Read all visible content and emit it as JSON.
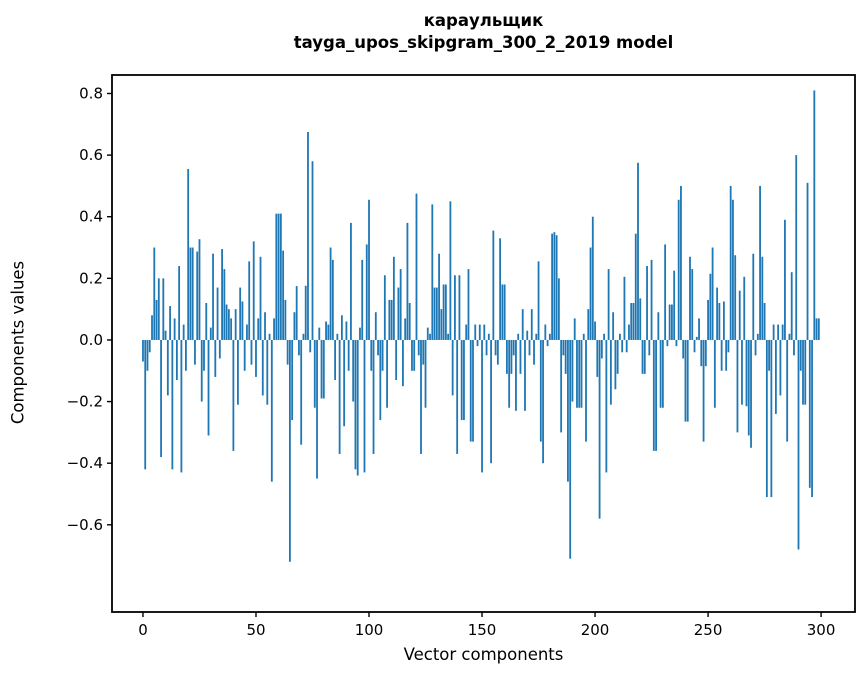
{
  "figure": {
    "title_line1": "караульщик",
    "title_line2": "tayga_upos_skipgram_300_2_2019 model",
    "background_color": "#ffffff"
  },
  "chart_data": {
    "type": "bar",
    "title": "караульщик",
    "subtitle": "tayga_upos_skipgram_300_2_2019 model",
    "xlabel": "Vector components",
    "ylabel": "Components values",
    "bar_color": "#1f77b4",
    "axis_color": "#000000",
    "grid": false,
    "legend": "none",
    "xlim": [
      -13.7,
      315
    ],
    "ylim": [
      -0.883,
      0.86
    ],
    "xticks": [
      0,
      50,
      100,
      150,
      200,
      250,
      300
    ],
    "yticks": [
      0.8,
      0.6,
      0.4,
      0.2,
      0.0,
      -0.2,
      -0.4,
      -0.6
    ],
    "ytick_labels": [
      "0.8",
      "0.6",
      "0.4",
      "0.2",
      "0.0",
      "−0.2",
      "−0.4",
      "−0.6"
    ],
    "x_start": 0,
    "bar_width": 0.8,
    "values": [
      -0.07,
      -0.42,
      -0.1,
      -0.04,
      0.08,
      0.3,
      0.13,
      0.2,
      -0.38,
      0.2,
      0.03,
      -0.18,
      0.11,
      -0.42,
      0.07,
      -0.13,
      0.24,
      -0.43,
      0.05,
      -0.1,
      0.555,
      0.3,
      0.3,
      -0.08,
      0.287,
      0.327,
      -0.2,
      -0.1,
      0.12,
      -0.31,
      0.04,
      0.28,
      -0.12,
      0.17,
      -0.06,
      0.295,
      0.23,
      0.115,
      0.1,
      0.07,
      -0.36,
      0.1,
      -0.21,
      0.17,
      0.125,
      -0.1,
      0.05,
      0.255,
      -0.08,
      0.32,
      -0.12,
      0.07,
      0.27,
      -0.18,
      0.09,
      -0.21,
      0.02,
      -0.46,
      0.07,
      0.41,
      0.41,
      0.41,
      0.29,
      0.13,
      -0.08,
      -0.72,
      -0.26,
      0.09,
      0.175,
      -0.05,
      -0.34,
      0.02,
      0.176,
      0.675,
      -0.04,
      0.58,
      -0.22,
      -0.45,
      0.04,
      -0.19,
      -0.19,
      0.06,
      0.05,
      0.3,
      0.26,
      -0.13,
      0.02,
      -0.37,
      0.08,
      -0.28,
      0.06,
      -0.1,
      0.38,
      -0.2,
      -0.42,
      -0.44,
      0.04,
      0.26,
      -0.43,
      0.31,
      0.455,
      -0.1,
      -0.37,
      0.09,
      -0.05,
      -0.26,
      -0.1,
      0.21,
      -0.22,
      0.13,
      0.13,
      0.27,
      -0.13,
      0.17,
      0.23,
      -0.15,
      0.07,
      0.38,
      0.12,
      -0.1,
      -0.1,
      0.475,
      -0.05,
      -0.37,
      -0.08,
      -0.22,
      0.04,
      0.02,
      0.44,
      0.17,
      0.17,
      0.28,
      0.1,
      0.18,
      0.18,
      0.02,
      0.45,
      -0.18,
      0.21,
      -0.37,
      0.21,
      -0.26,
      -0.26,
      0.05,
      0.23,
      -0.33,
      -0.33,
      0.05,
      -0.02,
      0.05,
      -0.43,
      0.05,
      -0.05,
      0.02,
      -0.4,
      0.355,
      -0.05,
      -0.08,
      0.33,
      0.18,
      0.18,
      -0.11,
      -0.22,
      -0.11,
      -0.05,
      -0.23,
      0.02,
      -0.11,
      0.1,
      -0.23,
      0.03,
      -0.05,
      0.1,
      -0.08,
      0.02,
      0.255,
      -0.33,
      -0.4,
      0.05,
      -0.02,
      0.02,
      0.345,
      0.35,
      0.34,
      0.2,
      -0.3,
      -0.05,
      -0.11,
      -0.46,
      -0.71,
      -0.2,
      0.07,
      -0.22,
      -0.22,
      -0.22,
      0.02,
      -0.33,
      0.1,
      0.3,
      0.4,
      0.06,
      -0.12,
      -0.58,
      -0.06,
      0.02,
      -0.43,
      0.23,
      -0.21,
      0.09,
      -0.16,
      -0.11,
      0.02,
      -0.04,
      0.205,
      -0.04,
      0.05,
      0.12,
      0.12,
      0.345,
      0.575,
      0.135,
      -0.11,
      -0.11,
      0.24,
      -0.05,
      0.26,
      -0.36,
      -0.36,
      0.09,
      -0.22,
      -0.22,
      0.31,
      -0.02,
      0.115,
      0.115,
      0.225,
      -0.02,
      0.455,
      0.5,
      -0.06,
      -0.265,
      -0.265,
      0.27,
      0.23,
      -0.04,
      0.01,
      0.07,
      -0.085,
      -0.33,
      -0.085,
      0.13,
      0.215,
      0.3,
      -0.22,
      0.17,
      0.12,
      -0.1,
      0.125,
      -0.1,
      -0.04,
      0.5,
      0.455,
      0.275,
      -0.3,
      0.16,
      -0.21,
      0.205,
      -0.215,
      -0.31,
      -0.35,
      0.28,
      -0.05,
      0.02,
      0.5,
      0.27,
      0.12,
      -0.51,
      -0.1,
      -0.51,
      0.05,
      -0.24,
      0.05,
      -0.18,
      0.05,
      0.39,
      -0.33,
      0.02,
      0.22,
      -0.05,
      0.6,
      -0.68,
      -0.1,
      -0.21,
      -0.21,
      0.51,
      -0.48,
      -0.51,
      0.81,
      0.07,
      0.07
    ]
  }
}
